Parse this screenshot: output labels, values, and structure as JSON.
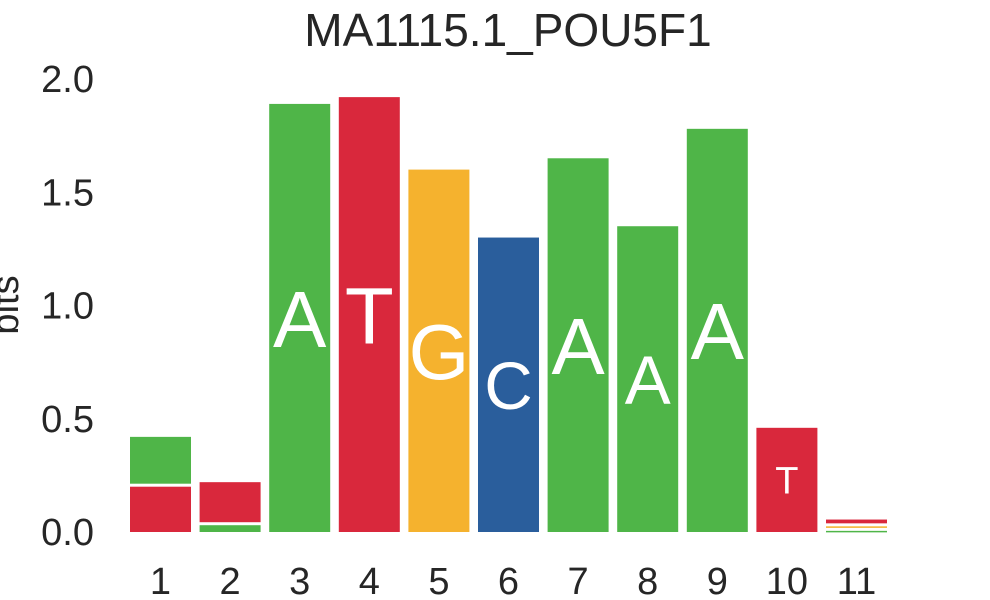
{
  "chart_data": {
    "type": "bar",
    "subtype": "sequence-logo",
    "title": "MA1115.1_POU5F1",
    "xlabel": "",
    "ylabel": "bits",
    "ylim": [
      0,
      2.0
    ],
    "yticks": [
      "0.0",
      "0.5",
      "1.0",
      "1.5",
      "2.0"
    ],
    "grid": false,
    "colors": {
      "A": "#4fb548",
      "C": "#2a5e9c",
      "G": "#f5b22e",
      "T": "#d9283c"
    },
    "positions": [
      {
        "label": "1",
        "stack": [
          {
            "base": "T",
            "value": 0.2,
            "text": ""
          },
          {
            "base": "A",
            "value": 0.22,
            "text": ""
          }
        ]
      },
      {
        "label": "2",
        "stack": [
          {
            "base": "A",
            "value": 0.03,
            "text": ""
          },
          {
            "base": "T",
            "value": 0.19,
            "text": ""
          }
        ]
      },
      {
        "label": "3",
        "stack": [
          {
            "base": "A",
            "value": 1.89,
            "text": "A"
          }
        ]
      },
      {
        "label": "4",
        "stack": [
          {
            "base": "T",
            "value": 1.92,
            "text": "T"
          }
        ]
      },
      {
        "label": "5",
        "stack": [
          {
            "base": "G",
            "value": 1.6,
            "text": "G"
          }
        ]
      },
      {
        "label": "6",
        "stack": [
          {
            "base": "C",
            "value": 1.3,
            "text": "C"
          }
        ]
      },
      {
        "label": "7",
        "stack": [
          {
            "base": "A",
            "value": 1.65,
            "text": "A"
          }
        ]
      },
      {
        "label": "8",
        "stack": [
          {
            "base": "A",
            "value": 1.35,
            "text": "A"
          }
        ]
      },
      {
        "label": "9",
        "stack": [
          {
            "base": "A",
            "value": 1.78,
            "text": "A"
          }
        ]
      },
      {
        "label": "10",
        "stack": [
          {
            "base": "T",
            "value": 0.46,
            "text": "T"
          }
        ]
      },
      {
        "label": "11",
        "stack": [
          {
            "base": "A",
            "value": 0.005,
            "text": ""
          },
          {
            "base": "G",
            "value": 0.02,
            "text": ""
          },
          {
            "base": "T",
            "value": 0.03,
            "text": ""
          }
        ]
      }
    ]
  }
}
